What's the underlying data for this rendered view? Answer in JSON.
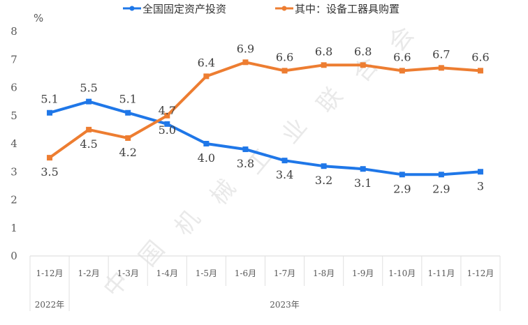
{
  "chart_data": {
    "type": "line",
    "unit": "%",
    "categories": [
      "1-12月",
      "1-2月",
      "1-3月",
      "1-4月",
      "1-5月",
      "1-6月",
      "1-7月",
      "1-8月",
      "1-9月",
      "1-10月",
      "1-11月",
      "1-12月"
    ],
    "category_groups": [
      {
        "label": "2022年",
        "start": 0,
        "end": 0
      },
      {
        "label": "2023年",
        "start": 1,
        "end": 11
      }
    ],
    "series": [
      {
        "name": "全国固定资产投资",
        "color": "#1f77e8",
        "values": [
          5.1,
          5.5,
          5.1,
          4.7,
          4.0,
          3.8,
          3.4,
          3.2,
          3.1,
          2.9,
          2.9,
          3.0
        ],
        "labels": [
          "5.1",
          "5.5",
          "5.1",
          "4.7",
          "4.0",
          "3.8",
          "3.4",
          "3.2",
          "3.1",
          "2.9",
          "2.9",
          "3"
        ]
      },
      {
        "name": "其中：设备工器具购置",
        "color": "#ed7d31",
        "values": [
          3.5,
          4.5,
          4.2,
          5.0,
          6.4,
          6.9,
          6.6,
          6.8,
          6.8,
          6.6,
          6.7,
          6.6
        ],
        "labels": [
          "3.5",
          "4.5",
          "4.2",
          "5.0",
          "6.4",
          "6.9",
          "6.6",
          "6.8",
          "6.8",
          "6.6",
          "6.7",
          "6.6"
        ]
      }
    ],
    "ylim": [
      0,
      8
    ],
    "yticks": [
      0,
      1,
      2,
      3,
      4,
      5,
      6,
      7,
      8
    ],
    "grid": false,
    "legend": "top-center",
    "watermark": "中国机械工业联合会"
  }
}
